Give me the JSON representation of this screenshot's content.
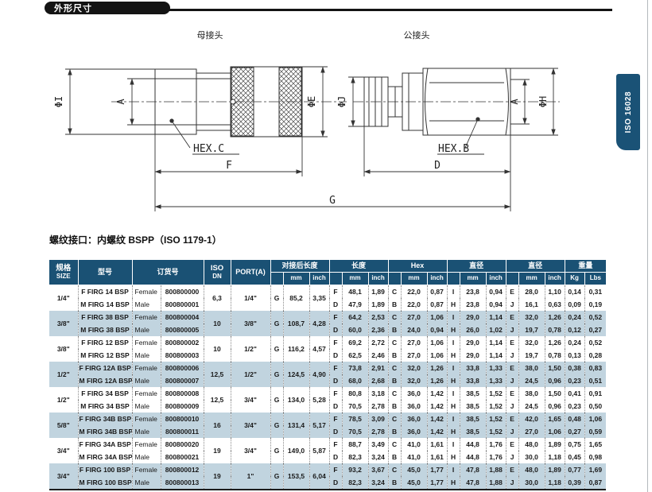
{
  "page": {
    "section_title": "外形尺寸",
    "side_tab": "ISO 16028",
    "thread_note": "螺纹接口：内螺纹 BSPP（ISO 1179-1）"
  },
  "colors": {
    "header_bg": "#1a5174",
    "row_alt": "#c1d4df",
    "side_tab_bg": "#1a5276",
    "section_tab_bg": "#141414"
  },
  "drawing": {
    "female_label": "母接头",
    "male_label": "公接头",
    "labels": {
      "phi_i": "ΦI",
      "a_left": "A",
      "phi_e": "ΦE",
      "hex_c": "HEX.C",
      "f": "F",
      "g": "G",
      "phi_j": "ΦJ",
      "a_right": "A",
      "phi_h": "ΦH",
      "hex_b": "HEX.B",
      "d": "D"
    }
  },
  "table": {
    "headers": {
      "size_zh": "规格",
      "size_en": "SIZE",
      "model": "型号",
      "order": "订货号",
      "iso": "ISO",
      "dn": "DN",
      "port": "PORT(A)",
      "joined_len": "对接后长度",
      "length": "长度",
      "hex": "Hex",
      "dia1": "直径",
      "dia2": "直径",
      "weight": "重量",
      "mm": "mm",
      "inch": "inch",
      "kg": "Kg",
      "lbs": "Lbs"
    },
    "rows": [
      {
        "size": "1/4\"",
        "iso_dn": "6,3",
        "port": "1/4\"",
        "joined": {
          "letter": "G",
          "mm": "85,2",
          "inch": "3,35"
        },
        "female": {
          "model": "F FIRG 14 BSP",
          "gender": "Female",
          "order": "800800000",
          "length": [
            "F",
            "48,1",
            "1,89"
          ],
          "hex": [
            "C",
            "22,0",
            "0,87"
          ],
          "dia1": [
            "I",
            "23,8",
            "0,94"
          ],
          "dia2": [
            "E",
            "28,0",
            "1,10"
          ],
          "weight": [
            "0,14",
            "0,31"
          ]
        },
        "male": {
          "model": "M FIRG 14 BSP",
          "gender": "Male",
          "order": "800800001",
          "length": [
            "D",
            "47,9",
            "1,89"
          ],
          "hex": [
            "B",
            "22,0",
            "0,87"
          ],
          "dia1": [
            "H",
            "23,8",
            "0,94"
          ],
          "dia2": [
            "J",
            "16,1",
            "0,63"
          ],
          "weight": [
            "0,09",
            "0,19"
          ]
        }
      },
      {
        "size": "3/8\"",
        "iso_dn": "10",
        "port": "3/8\"",
        "joined": {
          "letter": "G",
          "mm": "108,7",
          "inch": "4,28"
        },
        "female": {
          "model": "F FIRG 38 BSP",
          "gender": "Female",
          "order": "800800004",
          "length": [
            "F",
            "64,2",
            "2,53"
          ],
          "hex": [
            "C",
            "27,0",
            "1,06"
          ],
          "dia1": [
            "I",
            "29,0",
            "1,14"
          ],
          "dia2": [
            "E",
            "32,0",
            "1,26"
          ],
          "weight": [
            "0,24",
            "0,52"
          ]
        },
        "male": {
          "model": "M FIRG 38 BSP",
          "gender": "Male",
          "order": "800800005",
          "length": [
            "D",
            "60,0",
            "2,36"
          ],
          "hex": [
            "B",
            "24,0",
            "0,94"
          ],
          "dia1": [
            "H",
            "26,0",
            "1,02"
          ],
          "dia2": [
            "J",
            "19,7",
            "0,78"
          ],
          "weight": [
            "0,12",
            "0,27"
          ]
        }
      },
      {
        "size": "3/8\"",
        "iso_dn": "10",
        "port": "1/2\"",
        "joined": {
          "letter": "G",
          "mm": "116,2",
          "inch": "4,57"
        },
        "female": {
          "model": "F FIRG 12 BSP",
          "gender": "Female",
          "order": "800800002",
          "length": [
            "F",
            "69,2",
            "2,72"
          ],
          "hex": [
            "C",
            "27,0",
            "1,06"
          ],
          "dia1": [
            "I",
            "29,0",
            "1,14"
          ],
          "dia2": [
            "E",
            "32,0",
            "1,26"
          ],
          "weight": [
            "0,24",
            "0,52"
          ]
        },
        "male": {
          "model": "M FIRG 12 BSP",
          "gender": "Male",
          "order": "800800003",
          "length": [
            "D",
            "62,5",
            "2,46"
          ],
          "hex": [
            "B",
            "27,0",
            "1,06"
          ],
          "dia1": [
            "H",
            "29,0",
            "1,14"
          ],
          "dia2": [
            "J",
            "19,7",
            "0,78"
          ],
          "weight": [
            "0,13",
            "0,28"
          ]
        }
      },
      {
        "size": "1/2\"",
        "iso_dn": "12,5",
        "port": "1/2\"",
        "joined": {
          "letter": "G",
          "mm": "124,5",
          "inch": "4,90"
        },
        "female": {
          "model": "F FIRG 12A BSP",
          "gender": "Female",
          "order": "800800006",
          "length": [
            "F",
            "73,8",
            "2,91"
          ],
          "hex": [
            "C",
            "32,0",
            "1,26"
          ],
          "dia1": [
            "I",
            "33,8",
            "1,33"
          ],
          "dia2": [
            "E",
            "38,0",
            "1,50"
          ],
          "weight": [
            "0,38",
            "0,83"
          ]
        },
        "male": {
          "model": "M FIRG 12A BSP",
          "gender": "Male",
          "order": "800800007",
          "length": [
            "D",
            "68,0",
            "2,68"
          ],
          "hex": [
            "B",
            "32,0",
            "1,26"
          ],
          "dia1": [
            "H",
            "33,8",
            "1,33"
          ],
          "dia2": [
            "J",
            "24,5",
            "0,96"
          ],
          "weight": [
            "0,23",
            "0,51"
          ]
        }
      },
      {
        "size": "1/2\"",
        "iso_dn": "12,5",
        "port": "3/4\"",
        "joined": {
          "letter": "G",
          "mm": "134,0",
          "inch": "5,28"
        },
        "female": {
          "model": "F FIRG 34 BSP",
          "gender": "Female",
          "order": "800800008",
          "length": [
            "F",
            "80,8",
            "3,18"
          ],
          "hex": [
            "C",
            "36,0",
            "1,42"
          ],
          "dia1": [
            "I",
            "38,5",
            "1,52"
          ],
          "dia2": [
            "E",
            "38,0",
            "1,50"
          ],
          "weight": [
            "0,41",
            "0,91"
          ]
        },
        "male": {
          "model": "M FIRG 34 BSP",
          "gender": "Male",
          "order": "800800009",
          "length": [
            "D",
            "70,5",
            "2,78"
          ],
          "hex": [
            "B",
            "36,0",
            "1,42"
          ],
          "dia1": [
            "H",
            "38,5",
            "1,52"
          ],
          "dia2": [
            "J",
            "24,5",
            "0,96"
          ],
          "weight": [
            "0,23",
            "0,50"
          ]
        }
      },
      {
        "size": "5/8\"",
        "iso_dn": "16",
        "port": "3/4\"",
        "joined": {
          "letter": "G",
          "mm": "131,4",
          "inch": "5,17"
        },
        "female": {
          "model": "F FIRG 34B BSP",
          "gender": "Female",
          "order": "800800010",
          "length": [
            "F",
            "78,5",
            "3,09"
          ],
          "hex": [
            "C",
            "36,0",
            "1,42"
          ],
          "dia1": [
            "I",
            "38,5",
            "1,52"
          ],
          "dia2": [
            "E",
            "42,0",
            "1,65"
          ],
          "weight": [
            "0,48",
            "1,06"
          ]
        },
        "male": {
          "model": "M FIRG 34B BSP",
          "gender": "Male",
          "order": "800800011",
          "length": [
            "D",
            "70,5",
            "2,78"
          ],
          "hex": [
            "B",
            "36,0",
            "1,42"
          ],
          "dia1": [
            "H",
            "38,5",
            "1,52"
          ],
          "dia2": [
            "J",
            "27,0",
            "1,06"
          ],
          "weight": [
            "0,27",
            "0,59"
          ]
        }
      },
      {
        "size": "3/4\"",
        "iso_dn": "19",
        "port": "3/4\"",
        "joined": {
          "letter": "G",
          "mm": "149,0",
          "inch": "5,87"
        },
        "female": {
          "model": "F FIRG 34A BSP",
          "gender": "Female",
          "order": "800800020",
          "length": [
            "F",
            "88,7",
            "3,49"
          ],
          "hex": [
            "C",
            "41,0",
            "1,61"
          ],
          "dia1": [
            "I",
            "44,8",
            "1,76"
          ],
          "dia2": [
            "E",
            "48,0",
            "1,89"
          ],
          "weight": [
            "0,75",
            "1,65"
          ]
        },
        "male": {
          "model": "M FIRG 34A BSP",
          "gender": "Male",
          "order": "800800021",
          "length": [
            "D",
            "82,3",
            "3,24"
          ],
          "hex": [
            "B",
            "41,0",
            "1,61"
          ],
          "dia1": [
            "H",
            "44,8",
            "1,76"
          ],
          "dia2": [
            "J",
            "30,0",
            "1,18"
          ],
          "weight": [
            "0,45",
            "0,98"
          ]
        }
      },
      {
        "size": "3/4\"",
        "iso_dn": "19",
        "port": "1\"",
        "joined": {
          "letter": "G",
          "mm": "153,5",
          "inch": "6,04"
        },
        "female": {
          "model": "F FIRG 100 BSP",
          "gender": "Female",
          "order": "800800012",
          "length": [
            "F",
            "93,2",
            "3,67"
          ],
          "hex": [
            "C",
            "45,0",
            "1,77"
          ],
          "dia1": [
            "I",
            "47,8",
            "1,88"
          ],
          "dia2": [
            "E",
            "48,0",
            "1,89"
          ],
          "weight": [
            "0,77",
            "1,69"
          ]
        },
        "male": {
          "model": "M FIRG 100 BSP",
          "gender": "Male",
          "order": "800800013",
          "length": [
            "D",
            "82,3",
            "3,24"
          ],
          "hex": [
            "B",
            "45,0",
            "1,77"
          ],
          "dia1": [
            "H",
            "47,8",
            "1,88"
          ],
          "dia2": [
            "J",
            "30,0",
            "1,18"
          ],
          "weight": [
            "0,39",
            "0,87"
          ]
        }
      }
    ]
  }
}
